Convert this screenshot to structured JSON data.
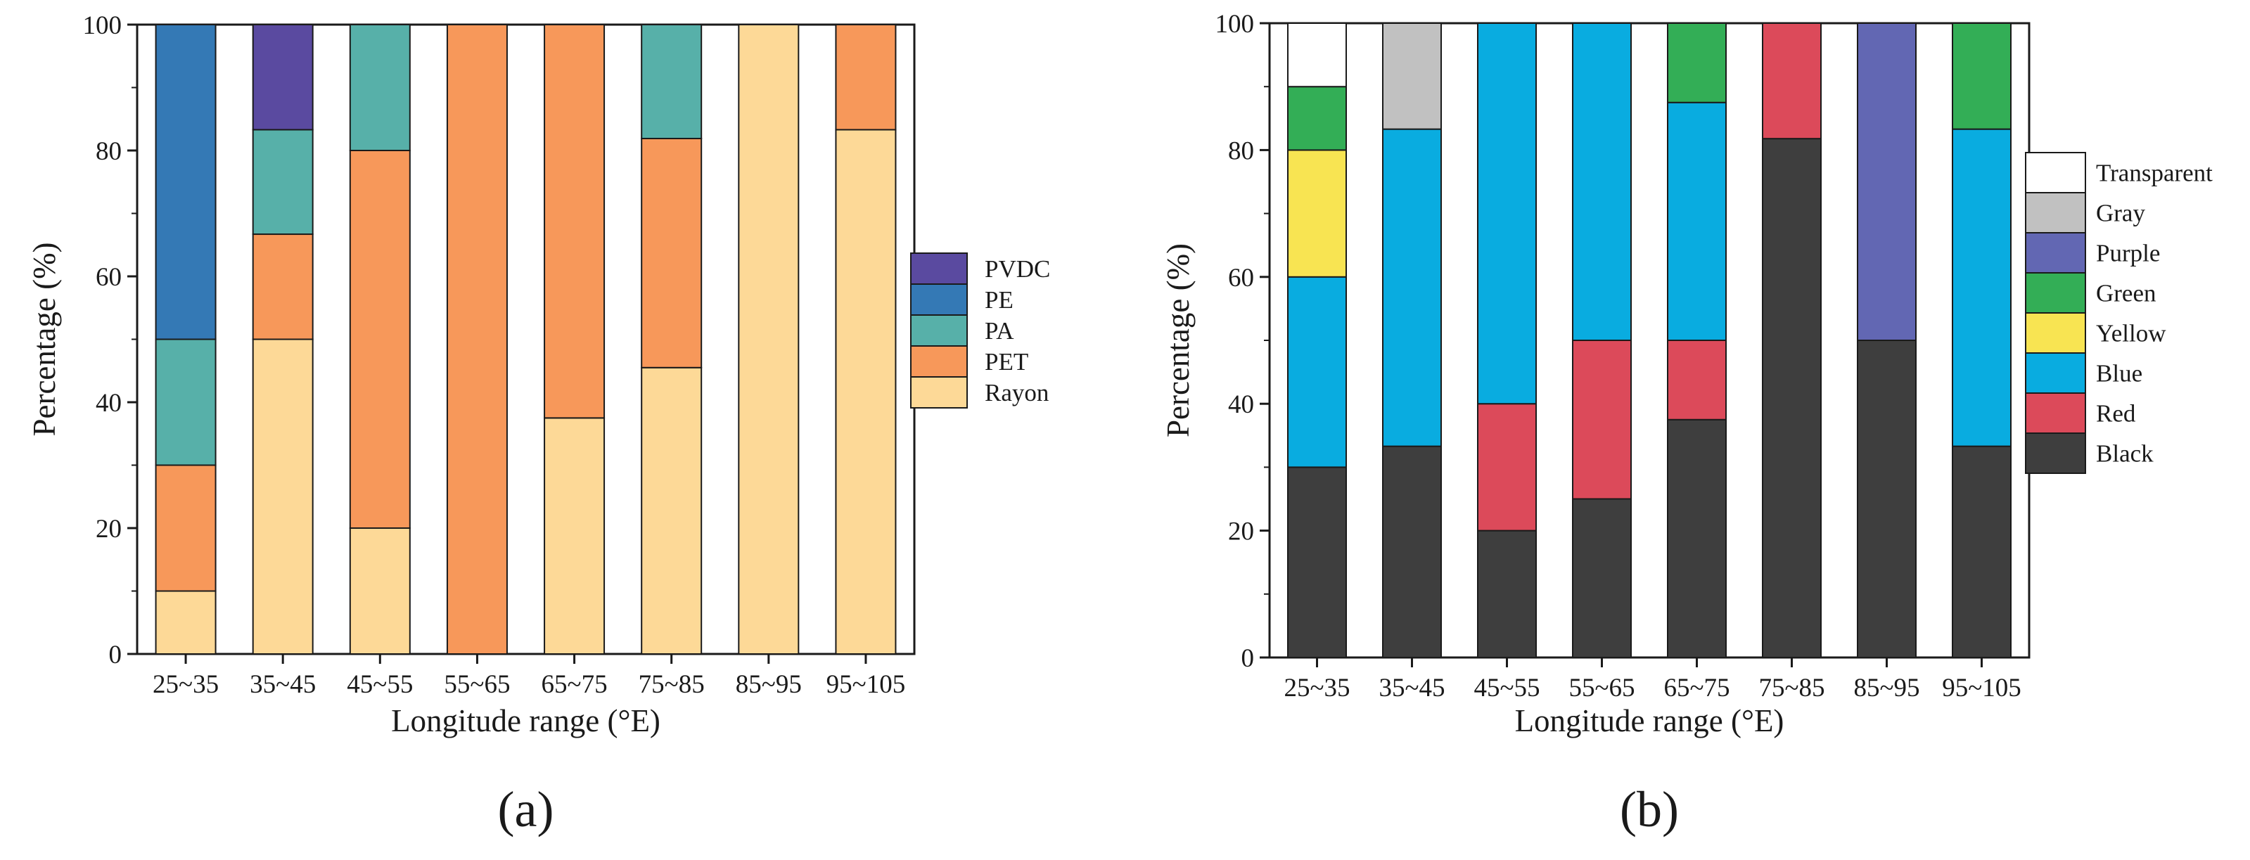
{
  "chart_data": [
    {
      "type": "bar",
      "stacked": true,
      "panel_label": "(a)",
      "title": "",
      "xlabel": "Longitude range (°E)",
      "ylabel": "Percentage (%)",
      "ylim": [
        0,
        100
      ],
      "yticks": [
        "0",
        "20",
        "40",
        "60",
        "80",
        "100"
      ],
      "categories": [
        "25~35",
        "35~45",
        "45~55",
        "55~65",
        "65~75",
        "75~85",
        "85~95",
        "95~105"
      ],
      "legend_position": "right",
      "series": [
        {
          "name": "Rayon",
          "color": "#FDD997",
          "values": [
            10,
            50,
            20,
            0,
            37.5,
            45.5,
            100,
            83.3
          ]
        },
        {
          "name": "PET",
          "color": "#F7985A",
          "values": [
            20,
            16.7,
            60,
            100,
            62.5,
            36.4,
            0,
            16.7
          ]
        },
        {
          "name": "PA",
          "color": "#57B0A9",
          "values": [
            20,
            16.6,
            20,
            0,
            0,
            18.1,
            0,
            0
          ]
        },
        {
          "name": "PE",
          "color": "#3479B5",
          "values": [
            50,
            0,
            0,
            0,
            0,
            0,
            0,
            0
          ]
        },
        {
          "name": "PVDC",
          "color": "#5A4AA0",
          "values": [
            0,
            16.7,
            0,
            0,
            0,
            0,
            0,
            0
          ]
        }
      ]
    },
    {
      "type": "bar",
      "stacked": true,
      "panel_label": "(b)",
      "title": "",
      "xlabel": "Longitude range (°E)",
      "ylabel": "Percentage (%)",
      "ylim": [
        0,
        100
      ],
      "yticks": [
        "0",
        "20",
        "40",
        "60",
        "80",
        "100"
      ],
      "categories": [
        "25~35",
        "35~45",
        "45~55",
        "55~65",
        "65~75",
        "75~85",
        "85~95",
        "95~105"
      ],
      "legend_position": "right",
      "series": [
        {
          "name": "Black",
          "color": "#3E3E3E",
          "values": [
            30,
            33.3,
            20,
            25,
            37.5,
            81.8,
            50,
            33.3
          ]
        },
        {
          "name": "Red",
          "color": "#DC4A5A",
          "values": [
            0,
            0,
            20,
            25,
            12.5,
            18.2,
            0,
            0
          ]
        },
        {
          "name": "Blue",
          "color": "#09ACE0",
          "values": [
            30,
            50,
            60,
            50,
            37.5,
            0,
            0,
            50
          ]
        },
        {
          "name": "Yellow",
          "color": "#F8E452",
          "values": [
            20,
            0,
            0,
            0,
            0,
            0,
            0,
            0
          ]
        },
        {
          "name": "Green",
          "color": "#33AE56",
          "values": [
            10,
            0,
            0,
            0,
            12.5,
            0,
            0,
            16.7
          ]
        },
        {
          "name": "Purple",
          "color": "#6267B3",
          "values": [
            0,
            0,
            0,
            0,
            0,
            0,
            50,
            0
          ]
        },
        {
          "name": "Gray",
          "color": "#C1C1C1",
          "values": [
            0,
            16.7,
            0,
            0,
            0,
            0,
            0,
            0
          ]
        },
        {
          "name": "Transparent",
          "color": "#FFFFFF",
          "values": [
            10,
            0,
            0,
            0,
            0,
            0,
            0,
            0
          ]
        }
      ]
    }
  ]
}
